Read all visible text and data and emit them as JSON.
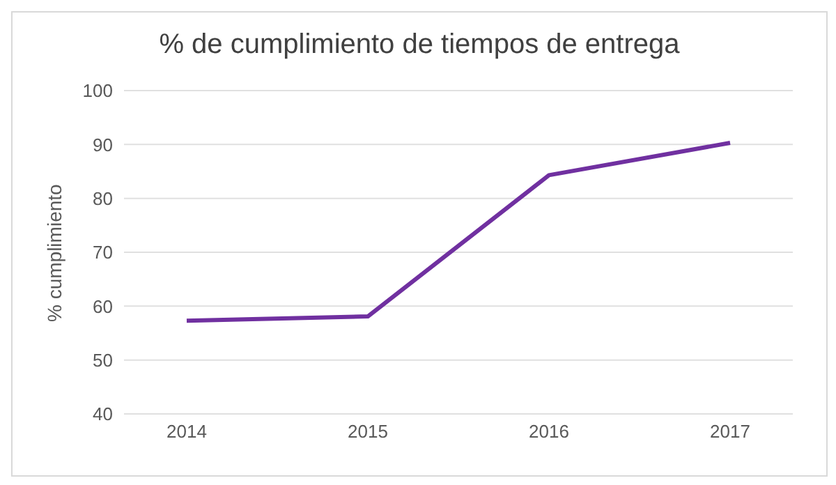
{
  "chart_data": {
    "type": "line",
    "title": "% de cumplimiento de tiempos de entrega",
    "ylabel": "% cumplimiento",
    "categories": [
      "2014",
      "2015",
      "2016",
      "2017"
    ],
    "series": [
      {
        "color": "#7030a0",
        "values": [
          57.3,
          58.1,
          84.3,
          90.3
        ]
      }
    ],
    "ylim": [
      40,
      100
    ],
    "yticks": [
      40,
      50,
      60,
      70,
      80,
      90,
      100
    ],
    "grid": "y",
    "legend": false,
    "marker": "none",
    "line_style": "solid"
  }
}
